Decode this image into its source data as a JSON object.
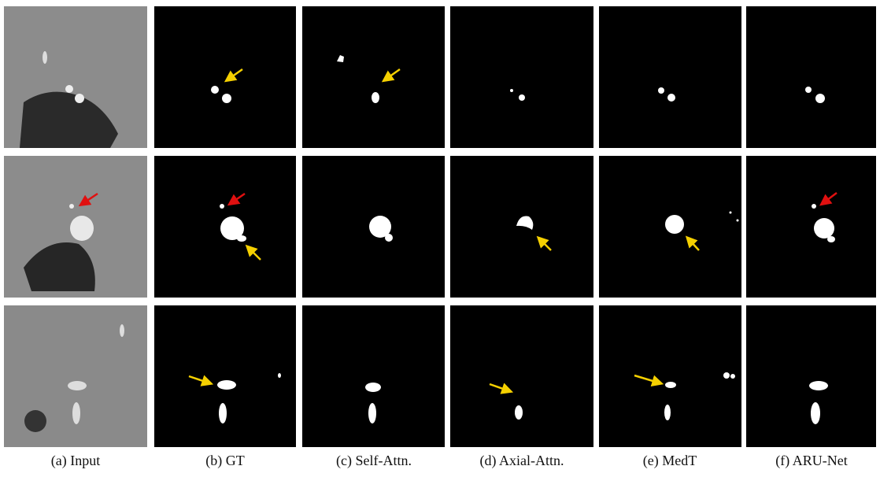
{
  "captions": [
    "(a)  Input",
    "(b) GT",
    "(c) Self-Attn.",
    "(d) Axial-Attn.",
    "(e) MedT",
    "(f) ARU-Net"
  ]
}
